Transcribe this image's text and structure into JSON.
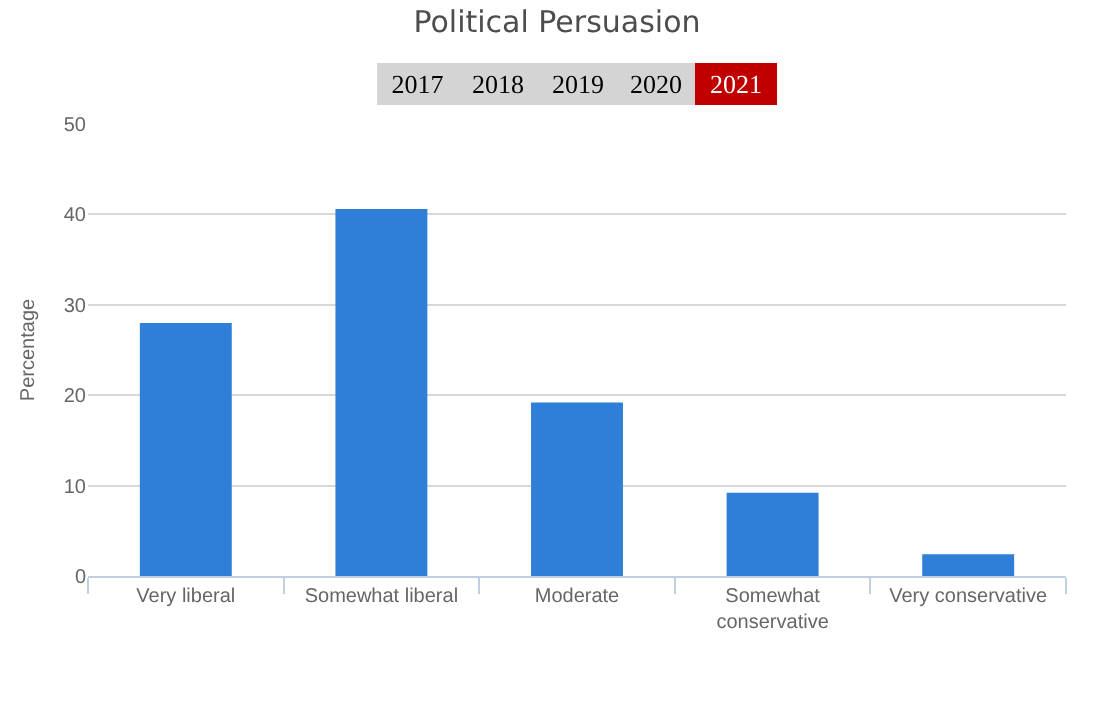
{
  "chart_data": {
    "type": "bar",
    "title": "Political Persuasion",
    "annotations": [
      "2017",
      "2018",
      "2019",
      "2020",
      "2021"
    ],
    "ylabel": "Percentage",
    "categories": [
      "Very liberal",
      "Somewhat liberal",
      "Moderate",
      "Somewhat conservative",
      "Very conservative"
    ],
    "values": [
      28,
      40.6,
      19.2,
      9.2,
      2.4
    ],
    "color": "#2f7ed8",
    "ylim": [
      0,
      50
    ],
    "yticks": [
      0,
      10,
      20,
      30,
      40,
      50
    ],
    "grid": "y",
    "legend": false
  }
}
